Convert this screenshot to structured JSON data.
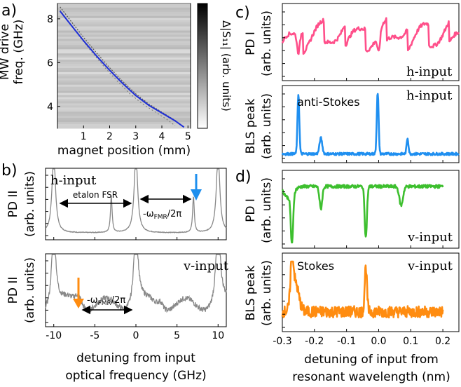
{
  "panel_labels": {
    "a": "a)",
    "b": "b)",
    "c": "c)",
    "d": "d)"
  },
  "colors": {
    "blue_line": "#1f2fd6",
    "pink": "#ff4f8a",
    "sky": "#1f8ff0",
    "green": "#3dbf2e",
    "orange": "#ff8c10",
    "gray_trace": "#888888",
    "arrow_blue": "#1e8fee",
    "arrow_orange": "#ff8c10"
  },
  "chart_data": [
    {
      "id": "a",
      "type": "heatmap",
      "xlabel": "magnet position (mm)",
      "ylabel_line1": "MW drive",
      "ylabel_line2": "freq. (GHz)",
      "colorbar_label": "Δ|S₁₁| (arb. units)",
      "xlim": [
        0,
        5.1
      ],
      "ylim": [
        3.0,
        8.7
      ],
      "x_ticks": [
        "1",
        "2",
        "3",
        "4",
        "5"
      ],
      "y_ticks": [
        "4",
        "6",
        "8"
      ],
      "x_tick_values": [
        1,
        2,
        3,
        4,
        5
      ],
      "y_tick_values": [
        4,
        6,
        8
      ],
      "fit_curve": {
        "x": [
          0.1,
          0.5,
          1.0,
          1.5,
          2.0,
          2.5,
          3.0,
          3.5,
          4.0,
          4.5,
          4.85
        ],
        "y": [
          8.35,
          7.75,
          7.0,
          6.3,
          5.65,
          5.05,
          4.5,
          4.05,
          3.7,
          3.35,
          3.05
        ]
      }
    },
    {
      "id": "b_top",
      "type": "line",
      "label": "h-input",
      "ylabel_line1": "PD II",
      "ylabel_line2": "(arb. units)",
      "xlim": [
        -11,
        11
      ],
      "annotations": {
        "fsr": "etalon FSR",
        "fmr": "-ω",
        "fmr_sub": "FMR",
        "fmr_tail": "/2π"
      }
    },
    {
      "id": "b_bottom",
      "type": "line",
      "label": "v-input",
      "ylabel_line1": "PD II",
      "ylabel_line2": "(arb. units)",
      "xlabel_line1": "detuning from input",
      "xlabel_line2": "optical frequency (GHz)",
      "xlim": [
        -11,
        11
      ],
      "x_ticks": [
        "-10",
        "-5",
        "0",
        "5",
        "10"
      ],
      "x_tick_values": [
        -10,
        -5,
        0,
        5,
        10
      ],
      "annotations": {
        "fmr": "-ω",
        "fmr_sub": "FMR",
        "fmr_tail": "/2π"
      }
    },
    {
      "id": "c_top",
      "type": "line",
      "label": "h-input",
      "ylabel_line1": "PD I",
      "ylabel_line2": "(arb. units)",
      "xlim": [
        -0.3,
        0.25
      ]
    },
    {
      "id": "c_bottom",
      "type": "line",
      "label": "h-input",
      "peak_label": "anti-Stokes",
      "ylabel_line1": "BLS peak",
      "ylabel_line2": "(arb. units)",
      "xlim": [
        -0.3,
        0.25
      ]
    },
    {
      "id": "d_top",
      "type": "line",
      "label": "v-input",
      "ylabel_line1": "PD I",
      "ylabel_line2": "(arb. units)",
      "xlim": [
        -0.3,
        0.25
      ]
    },
    {
      "id": "d_bottom",
      "type": "line",
      "label": "v-input",
      "peak_label": "Stokes",
      "ylabel_line1": "BLS peak",
      "ylabel_line2": "(arb. units)",
      "xlabel_line1": "detuning of input from",
      "xlabel_line2": "resonant wavelength (nm)",
      "xlim": [
        -0.3,
        0.25
      ],
      "x_ticks": [
        "-0.3",
        "-0.2",
        "-0.1",
        "0.0",
        "0.1",
        "0.2"
      ],
      "x_tick_values": [
        -0.3,
        -0.2,
        -0.1,
        0.0,
        0.1,
        0.2
      ]
    }
  ]
}
